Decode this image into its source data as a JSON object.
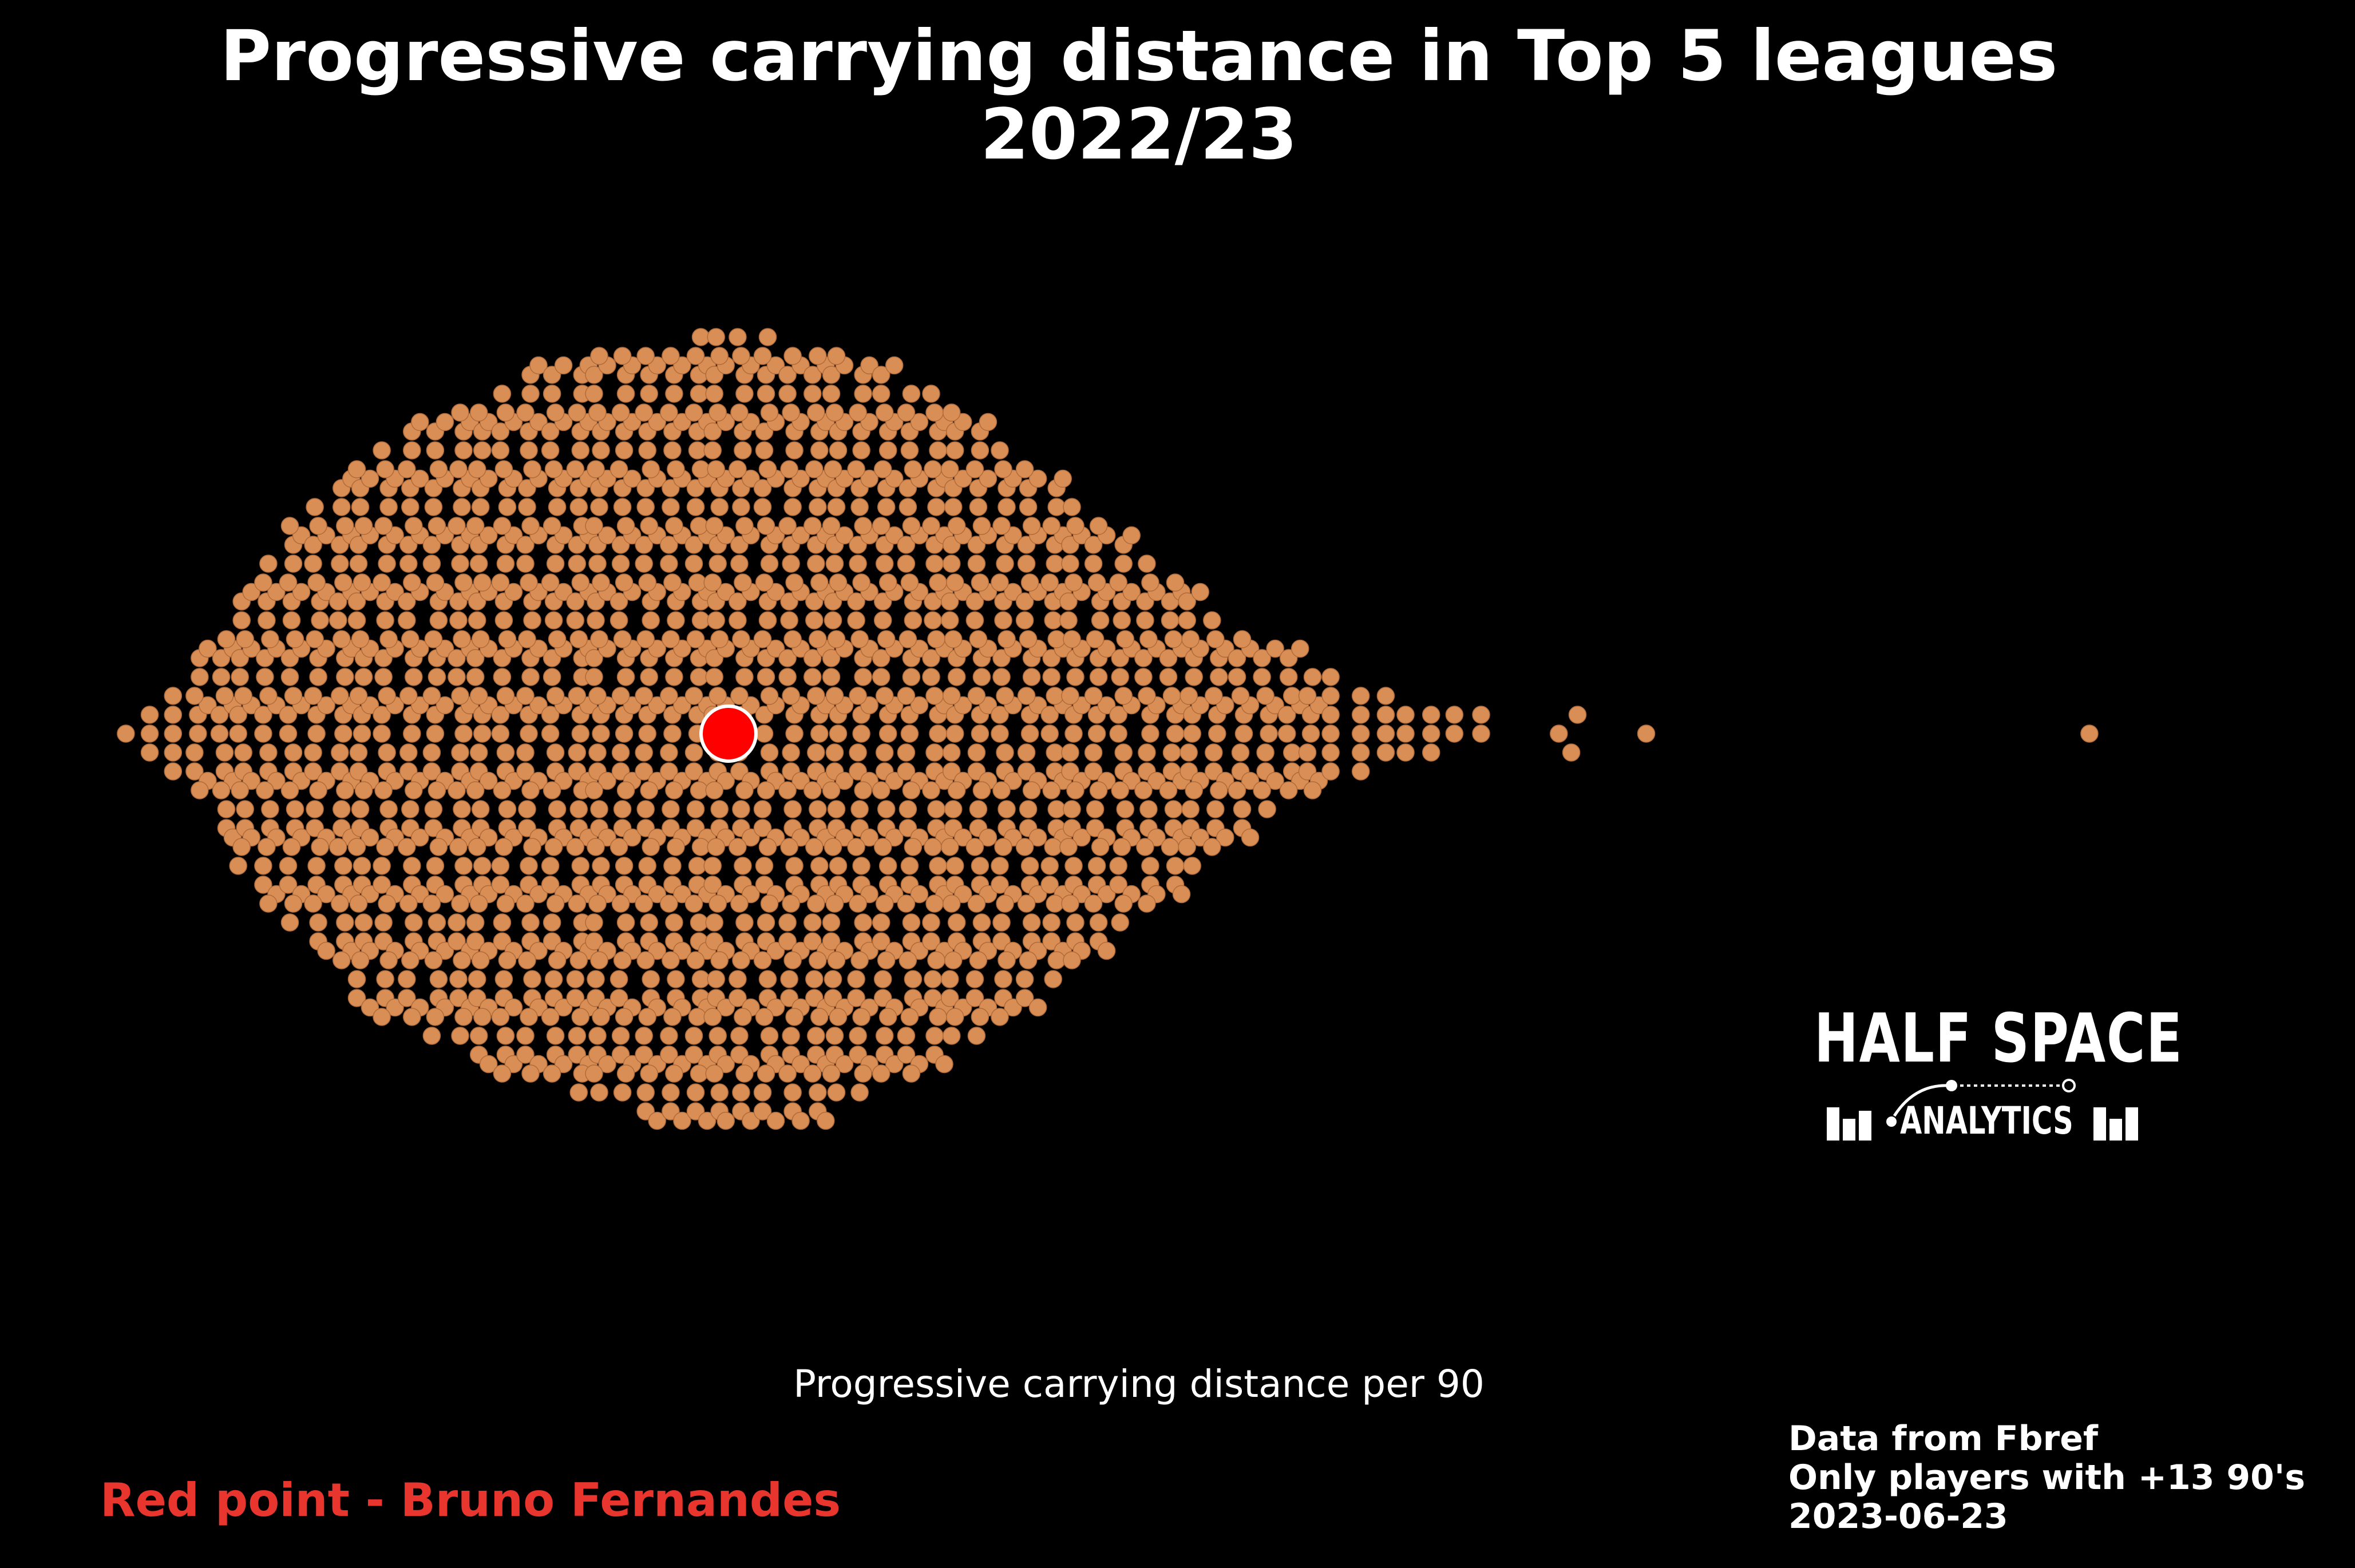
{
  "chart_data": {
    "type": "scatter",
    "title_line1": "Progressive carrying distance in Top 5 leagues",
    "title_line2": "2022/23",
    "xlabel": "Progressive carrying distance per 90",
    "ylabel": "",
    "grid": false,
    "point_color": "#d98e55",
    "highlight_color": "#ff0000",
    "highlight_player": "Bruno Fernandes",
    "highlight_x": 97,
    "xlim": [
      0,
      325
    ],
    "outliers": [
      230,
      232,
      233,
      244,
      315
    ],
    "bins": [
      {
        "x": 1,
        "n": 1
      },
      {
        "x": 4,
        "n": 3
      },
      {
        "x": 8,
        "n": 5
      },
      {
        "x": 12,
        "n": 8
      },
      {
        "x": 16,
        "n": 11
      },
      {
        "x": 19,
        "n": 15
      },
      {
        "x": 23,
        "n": 19
      },
      {
        "x": 27,
        "n": 22
      },
      {
        "x": 31,
        "n": 24
      },
      {
        "x": 35,
        "n": 26
      },
      {
        "x": 38,
        "n": 29
      },
      {
        "x": 42,
        "n": 31
      },
      {
        "x": 46,
        "n": 32
      },
      {
        "x": 50,
        "n": 33
      },
      {
        "x": 54,
        "n": 34
      },
      {
        "x": 57,
        "n": 35
      },
      {
        "x": 61,
        "n": 37
      },
      {
        "x": 65,
        "n": 38
      },
      {
        "x": 69,
        "n": 38
      },
      {
        "x": 73,
        "n": 39
      },
      {
        "x": 76,
        "n": 40
      },
      {
        "x": 80,
        "n": 40
      },
      {
        "x": 84,
        "n": 41
      },
      {
        "x": 88,
        "n": 41
      },
      {
        "x": 92,
        "n": 42
      },
      {
        "x": 95,
        "n": 42
      },
      {
        "x": 99,
        "n": 42
      },
      {
        "x": 103,
        "n": 42
      },
      {
        "x": 107,
        "n": 41
      },
      {
        "x": 111,
        "n": 41
      },
      {
        "x": 114,
        "n": 40
      },
      {
        "x": 118,
        "n": 39
      },
      {
        "x": 122,
        "n": 38
      },
      {
        "x": 126,
        "n": 37
      },
      {
        "x": 130,
        "n": 36
      },
      {
        "x": 133,
        "n": 34
      },
      {
        "x": 137,
        "n": 33
      },
      {
        "x": 141,
        "n": 31
      },
      {
        "x": 145,
        "n": 29
      },
      {
        "x": 149,
        "n": 27
      },
      {
        "x": 152,
        "n": 25
      },
      {
        "x": 156,
        "n": 23
      },
      {
        "x": 160,
        "n": 21
      },
      {
        "x": 164,
        "n": 19
      },
      {
        "x": 168,
        "n": 17
      },
      {
        "x": 171,
        "n": 15
      },
      {
        "x": 175,
        "n": 13
      },
      {
        "x": 179,
        "n": 11
      },
      {
        "x": 183,
        "n": 9
      },
      {
        "x": 187,
        "n": 8
      },
      {
        "x": 190,
        "n": 7
      },
      {
        "x": 194,
        "n": 6
      },
      {
        "x": 198,
        "n": 5
      },
      {
        "x": 202,
        "n": 4
      },
      {
        "x": 206,
        "n": 3
      },
      {
        "x": 209,
        "n": 3
      },
      {
        "x": 213,
        "n": 2
      },
      {
        "x": 217,
        "n": 2
      }
    ]
  },
  "highlight_note": "Red point - Bruno Fernandes",
  "source": {
    "line1": "Data from Fbref",
    "line2": "Only players with +13 90's",
    "line3": "2023-06-23"
  },
  "logo": {
    "top": "HALF SPACE",
    "bottom": "ANALYTICS"
  }
}
